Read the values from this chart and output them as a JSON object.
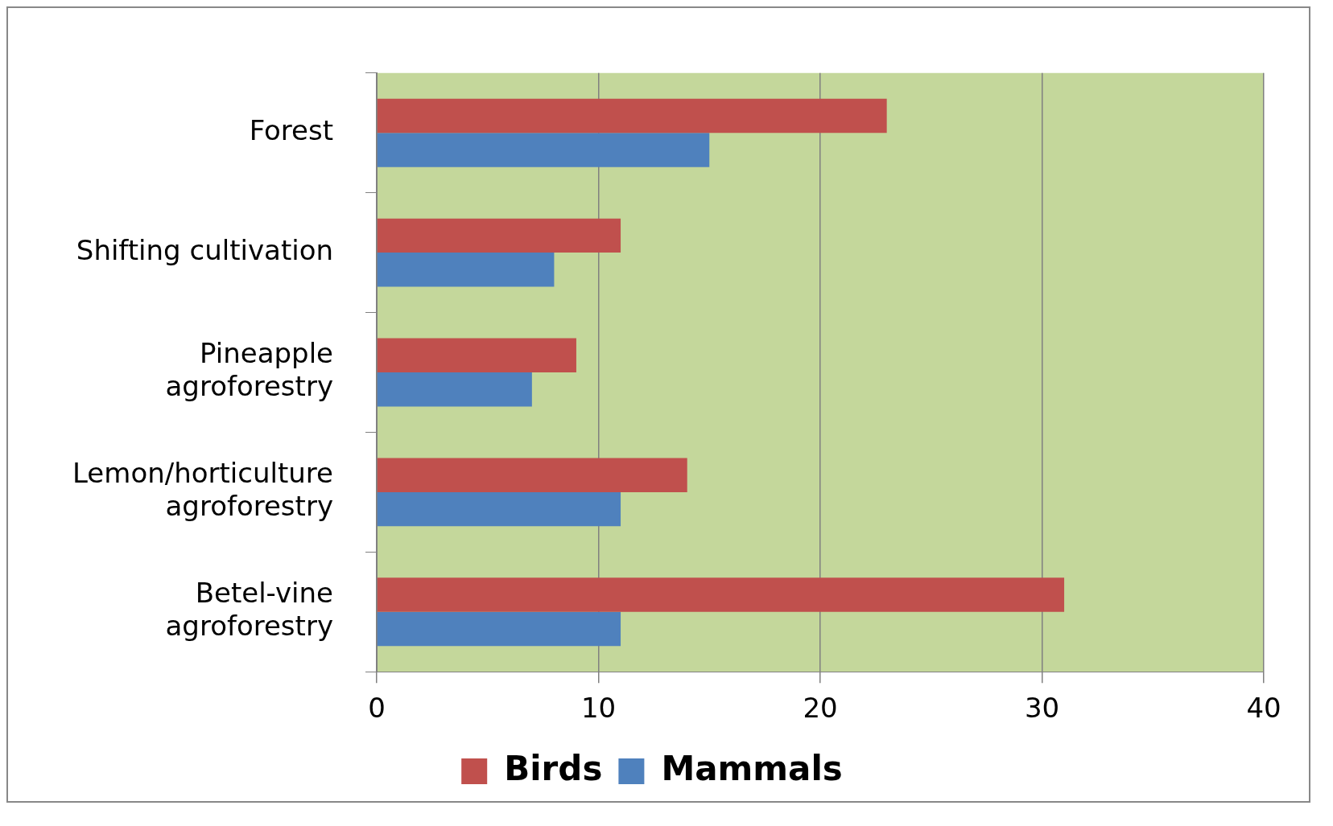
{
  "chart_data": {
    "type": "bar",
    "orientation": "horizontal",
    "categories": [
      "Forest",
      "Shifting cultivation",
      "Pineapple agroforestry",
      "Lemon/horticulture agroforestry",
      "Betel-vine agroforestry"
    ],
    "series": [
      {
        "name": "Birds",
        "color": "#c0504d",
        "values": [
          23,
          11,
          9,
          14,
          31
        ]
      },
      {
        "name": "Mammals",
        "color": "#4f81bd",
        "values": [
          15,
          8,
          7,
          11,
          11
        ]
      }
    ],
    "xlim": [
      0,
      40
    ],
    "xticks": [
      0,
      10,
      20,
      30,
      40
    ],
    "grid": "x",
    "legend": "bottom"
  }
}
